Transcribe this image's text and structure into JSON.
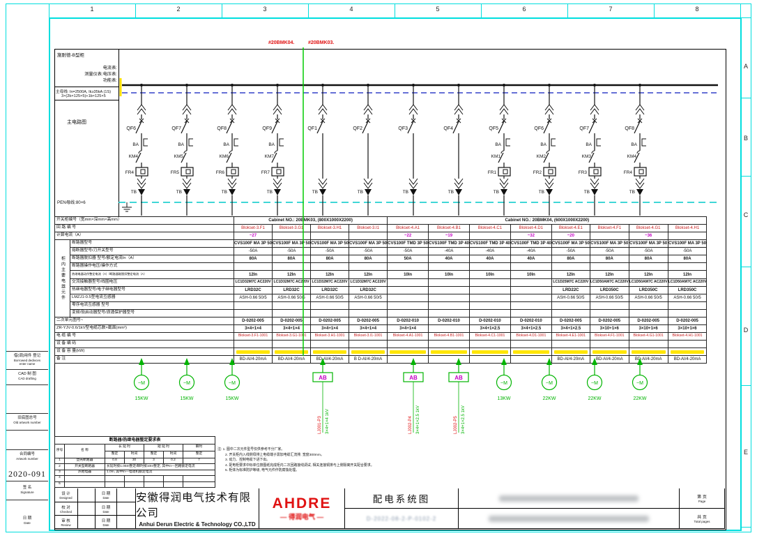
{
  "frame": {
    "ruler_numbers": [
      "1",
      "2",
      "3",
      "4",
      "5",
      "6",
      "7",
      "8"
    ],
    "row_letters": [
      "A",
      "B",
      "C",
      "D",
      "E"
    ]
  },
  "sidebar": {
    "borrowed_cn": "借(调)用件 登记",
    "borrowed_en1": "Borrowed dedivces",
    "borrowed_en2": "enter name",
    "cad_cn": "CAD 制 图",
    "cad_en": "CAD drafting",
    "old_artwork_cn": "旧底图总号",
    "old_artwork_en": "Old artwork number",
    "contract_cn": "合同编号",
    "contract_en": "Artwork number",
    "contract_no": "2020-091",
    "signature_cn": "签 名",
    "signature_en": "Signature",
    "date_cn": "日 期",
    "date_en": "Date"
  },
  "info_box": {
    "cabinet_type": "施耐德-B型柜",
    "meter_line1": "电流表:",
    "meter_line2": "测量仪表:电压表:",
    "meter_line3": "功能表:",
    "main_bus1": "主母线: In=2500A, Ik≥35kA (1S)",
    "main_bus2": "3×(2b×125×5)+1b×125×5",
    "main_circuit_label": "主电路图",
    "pen_bus": "PEN母线:80×6"
  },
  "schematic": {
    "tag_left": "#20BMK04.",
    "tag_right": "#20BMK03.",
    "columns": [
      {
        "qf": "QF6",
        "ba": "BA",
        "km": "KM4",
        "fr": "FR4",
        "tb": "TB",
        "drop": {
          "type": "motor",
          "kw": "15KW",
          "m": "~M"
        }
      },
      {
        "qf": "QF7",
        "ba": "BA",
        "km": "KM5",
        "fr": "FR5",
        "tb": "TB",
        "drop": {
          "type": "motor",
          "kw": "15KW",
          "m": "~M"
        }
      },
      {
        "qf": "QF8",
        "ba": "BA",
        "km": "KM6",
        "fr": "FR6",
        "tb": "TB",
        "drop": {
          "type": "motor",
          "kw": "15KW",
          "m": "~M"
        }
      },
      {
        "qf": "QF9",
        "ba": "BA",
        "km": "KM7",
        "fr": "FR7",
        "tb": "TB",
        "drop": null
      },
      {
        "qf": "QF1",
        "ba": "",
        "km": "",
        "fr": "",
        "tb": "TB",
        "drop": {
          "type": "box",
          "label": "AB",
          "red": "LJ001-P3",
          "green": "3×4+1×4 1kV"
        }
      },
      {
        "qf": "QF2",
        "ba": "",
        "km": "",
        "fr": "",
        "tb": "TB",
        "drop": null
      },
      {
        "qf": "QF3",
        "ba": "",
        "km": "",
        "fr": "",
        "tb": "TB",
        "drop": {
          "type": "box",
          "label": "AB",
          "red": "LJ002-P4",
          "green": "3×4+1×2.5 1kV"
        }
      },
      {
        "qf": "QF4",
        "ba": "",
        "km": "",
        "fr": "",
        "tb": "TB",
        "drop": {
          "type": "box",
          "label": "AB",
          "red": "LJ002-P5",
          "green": "3×4+1×2.5 1kV"
        }
      },
      {
        "qf": "QF5",
        "ba": "BA",
        "km": "KM1",
        "fr": "FR1",
        "tb": "TB",
        "drop": {
          "type": "motor",
          "kw": "13KW",
          "m": "~M"
        }
      },
      {
        "qf": "QF6",
        "ba": "BA",
        "km": "KM2",
        "fr": "FR2",
        "tb": "TB",
        "drop": {
          "type": "motor",
          "kw": "22KW",
          "m": "~M"
        }
      },
      {
        "qf": "QF7",
        "ba": "BA",
        "km": "KM3",
        "fr": "FR3",
        "tb": "TB",
        "drop": {
          "type": "motor",
          "kw": "22KW",
          "m": "~M"
        }
      },
      {
        "qf": "QF8",
        "ba": "BA",
        "km": "KM4",
        "fr": "FR4",
        "tb": "TB",
        "drop": {
          "type": "motor",
          "kw": "22KW",
          "m": "~M"
        }
      }
    ]
  },
  "table": {
    "group_label": "柜内主要电器元件",
    "cabinet_headers": [
      "Cabinet NO.: 20BMK03, (800X1000X2200)",
      "Cabinet NO.: 20BMK04, (600X1000X2200)"
    ],
    "row_labels": [
      "开关柜编号（宽mm×深mm×高mm）",
      "回 路 编 号",
      "计算电流（A）",
      "断路器型号",
      "熔断器型号/刀开关型号",
      "断路器脱扣器 型号/额定电流In（A）",
      "断路器操作电压/操作方式",
      "热继电器动作整定电流（A）/断路器磁脱扣整定电流（A）",
      "交流接触器型号/线圈电压",
      "热继电器型号/电子继电器型号",
      "LMZJ1-0.5型电流互感器",
      "零序电流互感器 型号",
      "变频/软启动器型号/浪涌保护器型号",
      "二次单元图号~",
      "ZR-YJV-0.6/1kV型电缆芯数×截面(mm²)",
      "电 缆 编 号",
      "设 备 编 码",
      "设 备 容 量(kW)",
      "备  注"
    ],
    "columns": [
      {
        "circuit": "Blokset-3.F1",
        "calc": "~27",
        "breaker": "CVS100F MA 3P 50",
        "fuse": "-50A",
        "rated": "80A",
        "opmode": "",
        "trip": "12In",
        "contactor": "LC1D32M7C AC220V",
        "thermal": "LRD32C",
        "ct": "ASH-0.66 50/5",
        "zct": "",
        "vfd": "",
        "unit": "D-0202-005",
        "cable": "3×4+1×4",
        "cable_no": "Blokset-3.F1-1001",
        "code": "",
        "capacity_redacted": true,
        "remark": "BD-AI/4-20mA"
      },
      {
        "circuit": "Blokset-3.G1",
        "calc": "",
        "breaker": "CVS100F MA 3P 50",
        "fuse": "-50A",
        "rated": "80A",
        "opmode": "",
        "trip": "12In",
        "contactor": "LC1D32M7C AC220V",
        "thermal": "LRD32C",
        "ct": "ASH-0.66 50/5",
        "zct": "",
        "vfd": "",
        "unit": "D-0202-005",
        "cable": "3×4+1×4",
        "cable_no": "Blokset-3.G1-1001",
        "code": "",
        "capacity_redacted": true,
        "remark": "BD-AI/4-20mA"
      },
      {
        "circuit": "Blokset-3.H1",
        "calc": "",
        "breaker": "CVS100F MA 3P 50",
        "fuse": "-50A",
        "rated": "80A",
        "opmode": "",
        "trip": "12In",
        "contactor": "LC1D32M7C AC220V",
        "thermal": "LRD32C",
        "ct": "ASH-0.66 50/5",
        "zct": "",
        "vfd": "",
        "unit": "D-0202-005",
        "cable": "3×4+1×4",
        "cable_no": "Blokset-3.H1-1001",
        "code": "",
        "capacity_redacted": true,
        "remark": "BD-AI/4-20mA"
      },
      {
        "circuit": "Blokset-3.I1",
        "calc": "",
        "breaker": "CVS100F MA 3P 50",
        "fuse": "-50A",
        "rated": "80A",
        "opmode": "",
        "trip": "12In",
        "contactor": "LC1D32M7C AC220V",
        "thermal": "LRD32C",
        "ct": "ASH-0.66 50/5",
        "zct": "",
        "vfd": "",
        "unit": "D-0202-005",
        "cable": "3×4+1×4",
        "cable_no": "Blokset-3.I1-1001",
        "code": "",
        "capacity_redacted": true,
        "remark": "B D-AI/4-20mA"
      },
      {
        "circuit": "Blokset-4.A1",
        "calc": "~22",
        "breaker": "CVS100F TMD 3P 50",
        "fuse": "-50A",
        "rated": "50A",
        "opmode": "",
        "trip": "10In",
        "contactor": "",
        "thermal": "",
        "ct": "",
        "zct": "",
        "vfd": "",
        "unit": "D-0202-010",
        "cable": "3×4+1×4",
        "cable_no": "Blokset-4.A1-1001",
        "code": "",
        "capacity_redacted": true,
        "remark": ""
      },
      {
        "circuit": "Blokset-4.B1",
        "calc": "~19",
        "breaker": "CVS100F TMD 3P 40",
        "fuse": "-40A",
        "rated": "40A",
        "opmode": "",
        "trip": "10In",
        "contactor": "",
        "thermal": "",
        "ct": "",
        "zct": "",
        "vfd": "",
        "unit": "D-0202-010",
        "cable": "",
        "cable_no": "Blokset-4.B1-1001",
        "code": "",
        "capacity_redacted": true,
        "remark": ""
      },
      {
        "circuit": "Blokset-4.C1",
        "calc": "",
        "breaker": "CVS100F TMD 3P 40",
        "fuse": "-40A",
        "rated": "40A",
        "opmode": "",
        "trip": "10In",
        "contactor": "",
        "thermal": "",
        "ct": "",
        "zct": "",
        "vfd": "",
        "unit": "D-0202-010",
        "cable": "3×4+1×2.5",
        "cable_no": "Blokset-4.C1-1001",
        "code": "",
        "capacity_redacted": true,
        "remark": ""
      },
      {
        "circuit": "Blokset-4.D1",
        "calc": "~32",
        "breaker": "CVS100F TMD 3P 40",
        "fuse": "-40A",
        "rated": "40A",
        "opmode": "",
        "trip": "10In",
        "contactor": "",
        "thermal": "",
        "ct": "",
        "zct": "",
        "vfd": "",
        "unit": "D-0202-010",
        "cable": "3×4+1×2.5",
        "cable_no": "Blokset-4.D1-1001",
        "code": "",
        "capacity_redacted": true,
        "remark": ""
      },
      {
        "circuit": "Blokset-4.E1",
        "calc": "~20",
        "breaker": "CVS100F MA 3P 50",
        "fuse": "-50A",
        "rated": "80A",
        "opmode": "",
        "trip": "12In",
        "contactor": "LC1D25M7C AC220V",
        "thermal": "LRD22C",
        "ct": "ASH-0.66 50/5",
        "zct": "",
        "vfd": "",
        "unit": "D-0202-005",
        "cable": "3×4+1×2.5",
        "cable_no": "Blokset-4.E1-1001",
        "code": "",
        "capacity_redacted": true,
        "remark": "BD-AI/4-20mA"
      },
      {
        "circuit": "Blokset-4.F1",
        "calc": "",
        "breaker": "CVS100F MA 3P 50",
        "fuse": "-50A",
        "rated": "80A",
        "opmode": "",
        "trip": "12In",
        "contactor": "LC1D50AM7C AC220V",
        "thermal": "LRD350C",
        "ct": "ASH-0.66 50/5",
        "zct": "",
        "vfd": "",
        "unit": "D-0202-005",
        "cable": "3×10+1×6",
        "cable_no": "Blokset-4.F1-1001",
        "code": "",
        "capacity_redacted": true,
        "remark": "BD-AI/4-20mA"
      },
      {
        "circuit": "Blokset-4.G1",
        "calc": "~36",
        "breaker": "CVS100F MA 3P 50",
        "fuse": "-50A",
        "rated": "80A",
        "opmode": "",
        "trip": "12In",
        "contactor": "LC1D50AM7C AC220V",
        "thermal": "LRD350C",
        "ct": "ASH-0.66 50/5",
        "zct": "",
        "vfd": "",
        "unit": "D-0202-005",
        "cable": "3×10+1×6",
        "cable_no": "Blokset-4.G1-1001",
        "code": "",
        "capacity_redacted": true,
        "remark": "BD-AI/4-20mA"
      },
      {
        "circuit": "Blokset-4.H1",
        "calc": "",
        "breaker": "CVS100F MA 3P 50",
        "fuse": "-50A",
        "rated": "80A",
        "opmode": "",
        "trip": "12In",
        "contactor": "LC1D50AM7C AC220V",
        "thermal": "LRD350C",
        "ct": "ASH-0.66 50/5",
        "zct": "",
        "vfd": "",
        "unit": "D-0202-005",
        "cable": "3×10+1×6",
        "cable_no": "Blokset-4.H1-1001",
        "code": "",
        "capacity_redacted": true,
        "remark": "BD-AI/4-20mA"
      }
    ]
  },
  "settings_table": {
    "title": "断路器/热继电器整定要求表",
    "headers": {
      "no": "序号",
      "name": "名  称",
      "long_delay": "长 延 时",
      "short_delay": "短 延 时",
      "inst": "瞬时",
      "set": "整定",
      "time": "时间"
    },
    "rows": [
      {
        "no": "1",
        "name": "塑壳断路器",
        "vals": [
          "0.8",
          "30",
          "3",
          "0.2",
          "7"
        ],
        "merged": ""
      },
      {
        "no": "2",
        "name": "开关型断路器",
        "vals": [],
        "merged": "长延时按1.05In整定/瞬时按10In整定, 其中In—回路额定电流"
      },
      {
        "no": "3",
        "name": "热继电器",
        "vals": [],
        "merged": "1.0In, 其中In—电动机额定电流"
      },
      {
        "no": "4",
        "name": "",
        "vals": [],
        "merged": ""
      },
      {
        "no": "5",
        "name": "",
        "vals": [],
        "merged": ""
      }
    ]
  },
  "notes": {
    "lines": [
      "注: 1. 图中二次元件型号仅供参考不分厂家。",
      "2. 开关柜内入线侧母排上电缆端子需加电缆汇流排, 宽度300mm。",
      "3. 动力、控制电缆下进下出。",
      "4. 配电柜要求中标单位按图纸完成柜内二次回路接线调试, 相关连接铜排与上侧隔离开关配合要求。",
      "5. 柜体为标准防护等级, 电气元件作防腐蚀处理。"
    ]
  },
  "title_block": {
    "rows": [
      {
        "role": "设 计",
        "role_en": "Designed"
      },
      {
        "role": "校 对",
        "role_en": "Checked"
      },
      {
        "role": "审 核",
        "role_en": "Review"
      }
    ],
    "date_label": "日 期",
    "date_label_en": "Date",
    "company_cn": "安徽得润电气技术有限公司",
    "company_en": "Anhui Derun Electric & Technology CO.,LTD",
    "logo": "AHDRE",
    "logo_sub": "— 得润电气 —",
    "drawing_title": "配电系统图",
    "drawing_no_redacted": "D-2022-08-2-P-0102-2",
    "page_label": "第  页",
    "page_label_en": "Page",
    "total_label": "共  页",
    "total_label_en": "Total pages"
  },
  "colors": {
    "frame_cyan": "#00dede",
    "divider_green": "#00cc00",
    "drop_green": "#00b400",
    "tag_red": "#e01010",
    "circuit_red": "#c81e1e",
    "calc_magenta": "#c400c4",
    "capacity_yellow": "#ffe600",
    "neutral_blue": "#3340c8",
    "pen_cyan": "#00c8c8",
    "bus_yellow": "#ffe000"
  }
}
